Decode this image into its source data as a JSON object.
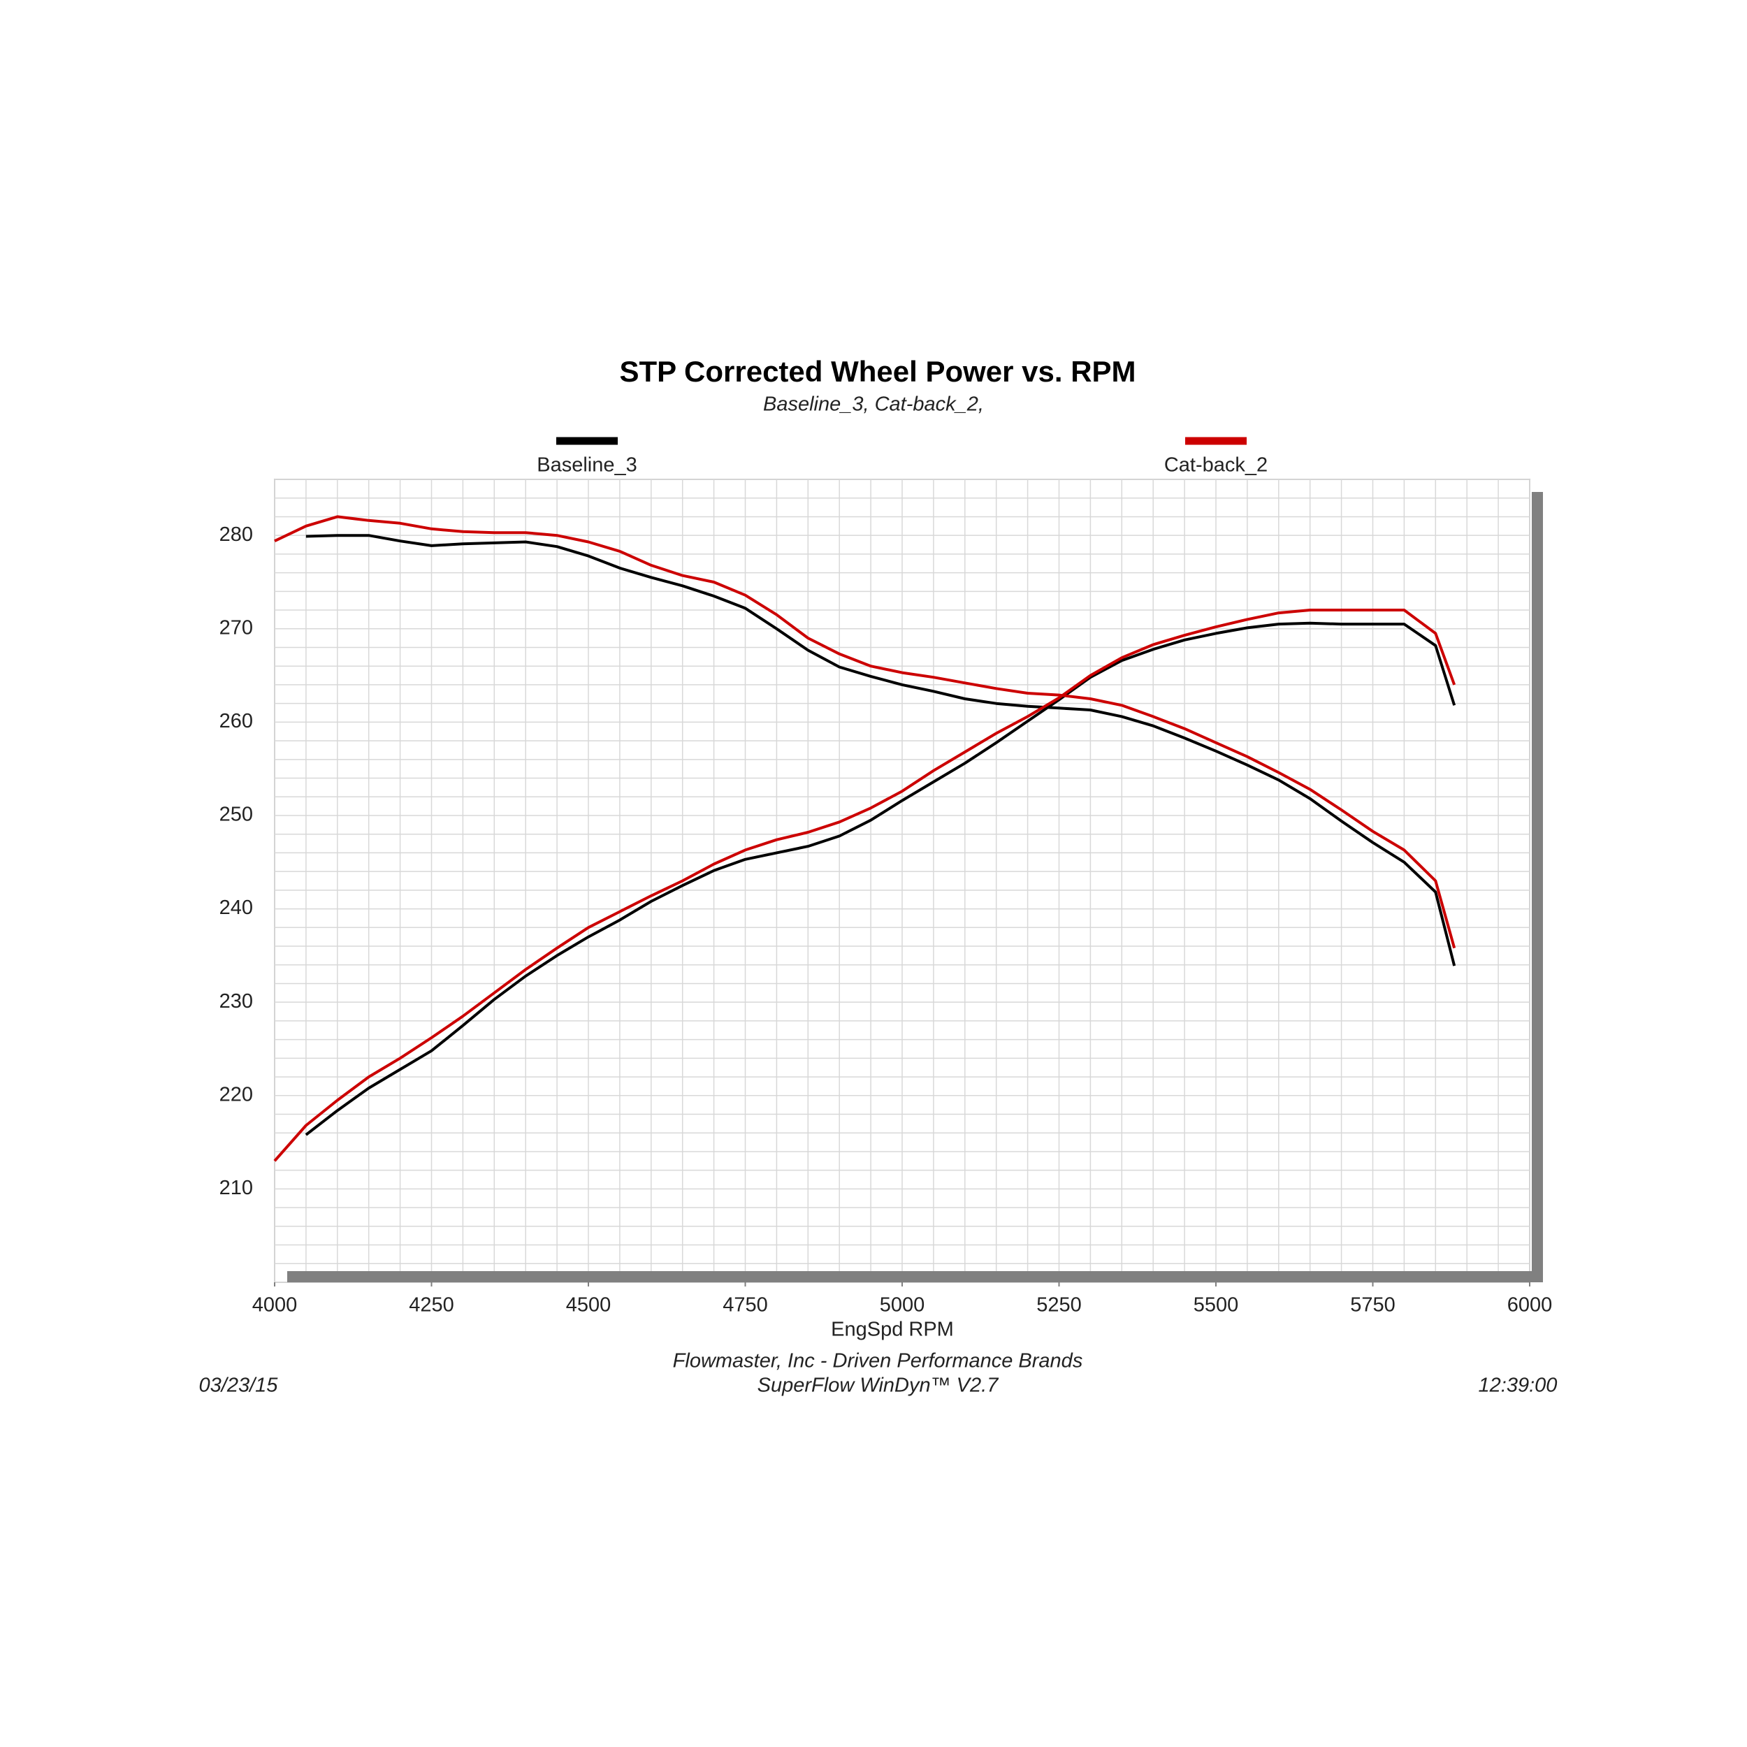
{
  "chart_data": {
    "type": "line",
    "title": "STP Corrected Wheel Power vs. RPM",
    "subtitle": "Baseline_3, Cat-back_2,",
    "x_label": "EngSpd  RPM",
    "source": "Flowmaster, Inc - Driven Performance Brands",
    "software": "SuperFlow WinDyn™ V2.7",
    "date": "03/23/15",
    "time": "12:39:00",
    "x": [
      4000,
      4050,
      4100,
      4150,
      4200,
      4250,
      4300,
      4350,
      4400,
      4450,
      4500,
      4550,
      4600,
      4650,
      4700,
      4750,
      4800,
      4850,
      4900,
      4950,
      5000,
      5050,
      5100,
      5150,
      5200,
      5250,
      5300,
      5350,
      5400,
      5450,
      5500,
      5550,
      5600,
      5650,
      5700,
      5750,
      5800,
      5850,
      5880
    ],
    "series": [
      {
        "name": "Baseline_3",
        "color": "#000000",
        "lines": [
          [
            null,
            279.9,
            280,
            280,
            279.4,
            278.9,
            279.1,
            279.2,
            279.3,
            278.8,
            277.8,
            276.5,
            275.5,
            274.6,
            273.5,
            272.2,
            270,
            267.7,
            265.9,
            264.9,
            264,
            263.3,
            262.5,
            262,
            261.7,
            261.5,
            261.3,
            260.6,
            259.6,
            258.3,
            256.9,
            255.4,
            253.8,
            251.8,
            249.4,
            247.1,
            245,
            241.8,
            233.9
          ],
          [
            null,
            215.8,
            218.4,
            220.8,
            222.8,
            224.8,
            227.5,
            230.3,
            232.8,
            235,
            237,
            238.8,
            240.8,
            242.5,
            244.1,
            245.3,
            246,
            246.7,
            247.8,
            249.5,
            251.6,
            253.6,
            255.6,
            257.8,
            260.1,
            262.4,
            264.8,
            266.6,
            267.8,
            268.8,
            269.5,
            270.1,
            270.5,
            270.6,
            270.5,
            270.5,
            270.5,
            268.2,
            261.8
          ]
        ]
      },
      {
        "name": "Cat-back_2",
        "color": "#cc0000",
        "lines": [
          [
            279.4,
            281,
            282,
            281.6,
            281.3,
            280.7,
            280.4,
            280.3,
            280.3,
            280,
            279.3,
            278.3,
            276.8,
            275.7,
            275,
            273.6,
            271.5,
            269,
            267.3,
            266,
            265.3,
            264.8,
            264.2,
            263.6,
            263.1,
            262.9,
            262.5,
            261.8,
            260.6,
            259.3,
            257.8,
            256.3,
            254.6,
            252.8,
            250.6,
            248.3,
            246.3,
            243,
            235.8
          ],
          [
            213,
            216.8,
            219.5,
            222,
            224,
            226.2,
            228.5,
            231,
            233.5,
            235.8,
            238,
            239.7,
            241.4,
            243,
            244.8,
            246.3,
            247.4,
            248.2,
            249.3,
            250.8,
            252.6,
            254.8,
            256.8,
            258.8,
            260.6,
            262.6,
            265,
            266.9,
            268.3,
            269.3,
            270.2,
            271,
            271.7,
            272,
            272,
            272,
            272,
            269.5,
            264
          ]
        ]
      }
    ],
    "xlim": [
      4000,
      6000
    ],
    "ylim": [
      200,
      286
    ],
    "xticks": [
      4000,
      4250,
      4500,
      4750,
      5000,
      5250,
      5500,
      5750,
      6000
    ],
    "yticks": [
      210,
      220,
      230,
      240,
      250,
      260,
      270,
      280
    ],
    "minor_grid": {
      "x": 50,
      "y": 2
    },
    "grid": true
  }
}
